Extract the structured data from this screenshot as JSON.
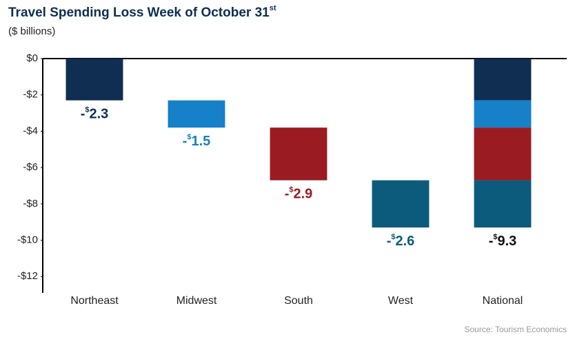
{
  "chart_data": {
    "type": "waterfall",
    "title": "Travel Spending Loss Week of October 31",
    "title_superscript": "st",
    "subtitle": "($ billions)",
    "source": "Source: Tourism Economics",
    "categories": [
      "Northeast",
      "Midwest",
      "South",
      "West",
      "National"
    ],
    "values": [
      -2.3,
      -1.5,
      -2.9,
      -2.6,
      -9.3
    ],
    "value_labels": [
      "-$2.3",
      "-$1.5",
      "-$2.9",
      "-$2.6",
      "-$9.3"
    ],
    "colors": [
      "#0f2e52",
      "#1680c8",
      "#9a1b21",
      "#0c5b7d",
      "#111111"
    ],
    "ylim": [
      -12.9,
      0
    ],
    "yticks": [
      {
        "value": 0,
        "label": "$0"
      },
      {
        "value": -2,
        "label": "-$2"
      },
      {
        "value": -4,
        "label": "-$4"
      },
      {
        "value": -6,
        "label": "-$6"
      },
      {
        "value": -8,
        "label": "-$8"
      },
      {
        "value": -10,
        "label": "-$10"
      },
      {
        "value": -12,
        "label": "-$12"
      }
    ]
  }
}
